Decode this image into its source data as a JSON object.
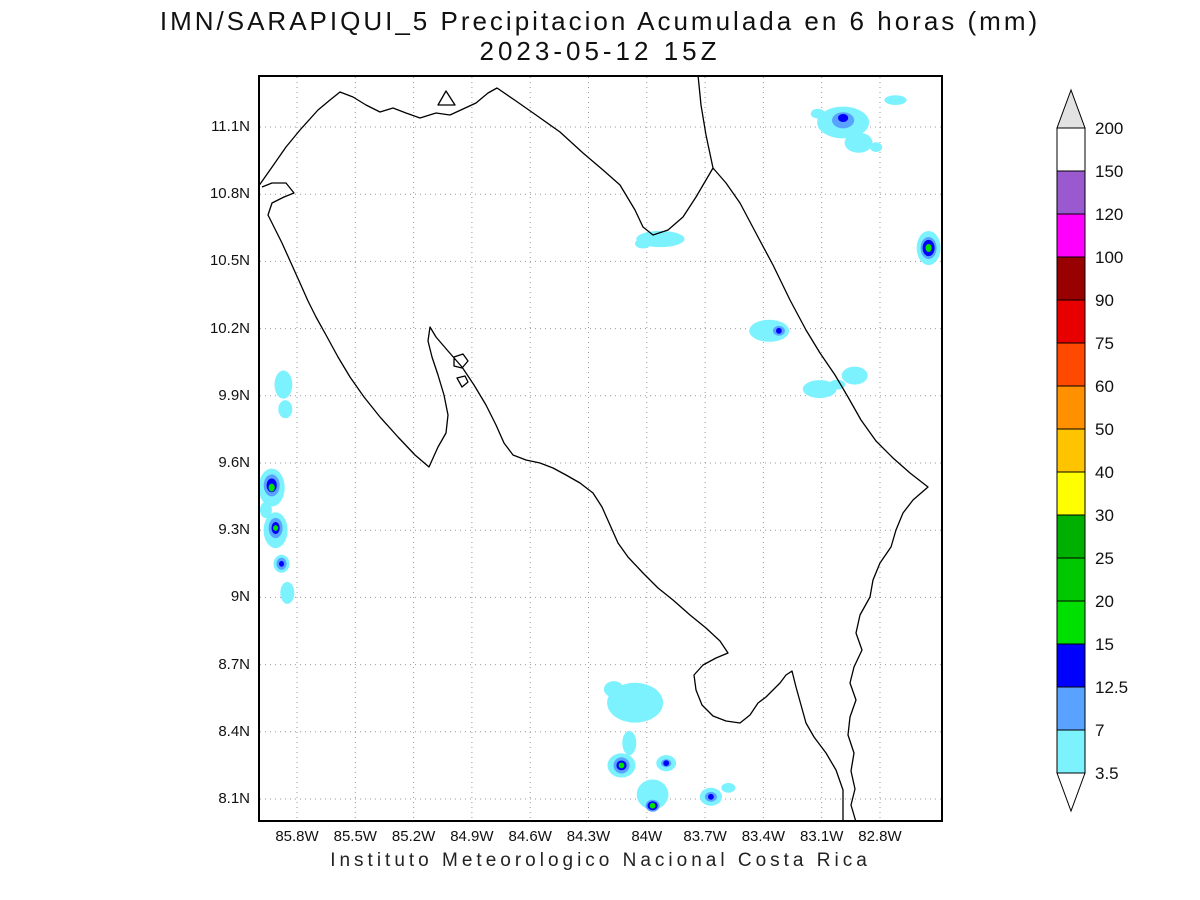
{
  "title": "IMN/SARAPIQUI_5 Precipitacion Acumulada en 6 horas (mm)",
  "subtitle": "2023-05-12 15Z",
  "footer": "Instituto Meteorologico Nacional Costa Rica",
  "axes": {
    "lat_ticks": [
      {
        "value": 11.1,
        "label": "11.1N"
      },
      {
        "value": 10.8,
        "label": "10.8N"
      },
      {
        "value": 10.5,
        "label": "10.5N"
      },
      {
        "value": 10.2,
        "label": "10.2N"
      },
      {
        "value": 9.9,
        "label": "9.9N"
      },
      {
        "value": 9.6,
        "label": "9.6N"
      },
      {
        "value": 9.3,
        "label": "9.3N"
      },
      {
        "value": 9.0,
        "label": "9N"
      },
      {
        "value": 8.7,
        "label": "8.7N"
      },
      {
        "value": 8.4,
        "label": "8.4N"
      },
      {
        "value": 8.1,
        "label": "8.1N"
      }
    ],
    "lon_ticks": [
      {
        "value": 85.8,
        "label": "85.8W"
      },
      {
        "value": 85.5,
        "label": "85.5W"
      },
      {
        "value": 85.2,
        "label": "85.2W"
      },
      {
        "value": 84.9,
        "label": "84.9W"
      },
      {
        "value": 84.6,
        "label": "84.6W"
      },
      {
        "value": 84.3,
        "label": "84.3W"
      },
      {
        "value": 84.0,
        "label": "84W"
      },
      {
        "value": 83.7,
        "label": "83.7W"
      },
      {
        "value": 83.4,
        "label": "83.4W"
      },
      {
        "value": 83.1,
        "label": "83.1W"
      },
      {
        "value": 82.8,
        "label": "82.8W"
      }
    ]
  },
  "map": {
    "region": "Costa Rica",
    "grid_color": "#999999",
    "coast_color": "#000000",
    "background": "#ffffff"
  },
  "colorbar": {
    "units": "mm",
    "levels": [
      "200",
      "150",
      "120",
      "100",
      "90",
      "75",
      "60",
      "50",
      "40",
      "30",
      "25",
      "20",
      "15",
      "12.5",
      "7",
      "3.5"
    ],
    "cell_colors": [
      "#ffffff",
      "#9b59d0",
      "#ff00ff",
      "#990000",
      "#e80000",
      "#ff4800",
      "#ff9000",
      "#ffc400",
      "#ffff00",
      "#00b000",
      "#00c800",
      "#00e000",
      "#0000ff",
      "#5aa2ff",
      "#7df2ff"
    ],
    "top_arrow_color": "#e2e2e2",
    "bottom_arrow_color": "#ffffff"
  },
  "chart_data": {
    "type": "heatmap",
    "variable": "Precipitacion Acumulada en 6 horas",
    "units": "mm",
    "model": "IMN/SARAPIQUI_5",
    "valid_time": "2023-05-12 15Z",
    "lon_range_w": [
      86.0,
      82.48
    ],
    "lat_range_n": [
      8.0,
      11.33
    ],
    "levels_mm": [
      3.5,
      7,
      12.5,
      15,
      20,
      25,
      30,
      40,
      50,
      60,
      75,
      90,
      100,
      120,
      150,
      200
    ],
    "palette": {
      "3.5": "#7df2ff",
      "7": "#5aa2ff",
      "12.5": "#0000ff",
      "15": "#00e000"
    },
    "precip_cells": [
      [
        82.99,
        11.12,
        0.134,
        0.071,
        "3.5"
      ],
      [
        82.91,
        11.03,
        0.072,
        0.045,
        "3.5"
      ],
      [
        82.99,
        11.13,
        0.057,
        0.036,
        "7"
      ],
      [
        82.99,
        11.14,
        0.026,
        0.018,
        "12.5"
      ],
      [
        82.72,
        11.22,
        0.057,
        0.022,
        "3.5"
      ],
      [
        82.82,
        11.01,
        0.031,
        0.022,
        "3.5"
      ],
      [
        83.12,
        11.16,
        0.036,
        0.022,
        "3.5"
      ],
      [
        82.55,
        10.56,
        0.062,
        0.076,
        "3.5"
      ],
      [
        82.55,
        10.56,
        0.041,
        0.049,
        "7"
      ],
      [
        82.55,
        10.56,
        0.031,
        0.036,
        "12.5"
      ],
      [
        82.55,
        10.56,
        0.016,
        0.018,
        "15"
      ],
      [
        83.93,
        10.6,
        0.124,
        0.036,
        "3.5"
      ],
      [
        84.02,
        10.58,
        0.041,
        0.022,
        "3.5"
      ],
      [
        83.37,
        10.19,
        0.103,
        0.049,
        "3.5"
      ],
      [
        83.32,
        10.19,
        0.031,
        0.022,
        "7"
      ],
      [
        83.32,
        10.19,
        0.015,
        0.013,
        "12.5"
      ],
      [
        83.11,
        9.93,
        0.087,
        0.04,
        "3.5"
      ],
      [
        82.93,
        9.99,
        0.067,
        0.04,
        "3.5"
      ],
      [
        83.02,
        9.95,
        0.041,
        0.022,
        "3.5"
      ],
      [
        85.87,
        9.95,
        0.046,
        0.063,
        "3.5"
      ],
      [
        85.86,
        9.84,
        0.036,
        0.04,
        "3.5"
      ],
      [
        85.93,
        9.49,
        0.067,
        0.085,
        "3.5"
      ],
      [
        85.93,
        9.5,
        0.041,
        0.049,
        "7"
      ],
      [
        85.93,
        9.5,
        0.026,
        0.031,
        "12.5"
      ],
      [
        85.93,
        9.49,
        0.016,
        0.018,
        "15"
      ],
      [
        85.96,
        9.39,
        0.031,
        0.036,
        "3.5"
      ],
      [
        85.91,
        9.3,
        0.062,
        0.08,
        "3.5"
      ],
      [
        85.91,
        9.31,
        0.036,
        0.045,
        "7"
      ],
      [
        85.91,
        9.31,
        0.021,
        0.027,
        "12.5"
      ],
      [
        85.91,
        9.31,
        0.013,
        0.013,
        "15"
      ],
      [
        85.88,
        9.15,
        0.041,
        0.04,
        "3.5"
      ],
      [
        85.88,
        9.15,
        0.026,
        0.027,
        "7"
      ],
      [
        85.88,
        9.15,
        0.013,
        0.013,
        "12.5"
      ],
      [
        85.85,
        9.02,
        0.036,
        0.049,
        "3.5"
      ],
      [
        84.06,
        8.53,
        0.144,
        0.089,
        "3.5"
      ],
      [
        84.17,
        8.59,
        0.051,
        0.036,
        "3.5"
      ],
      [
        84.09,
        8.35,
        0.036,
        0.054,
        "3.5"
      ],
      [
        84.13,
        8.25,
        0.072,
        0.054,
        "3.5"
      ],
      [
        84.13,
        8.25,
        0.041,
        0.036,
        "7"
      ],
      [
        84.13,
        8.25,
        0.026,
        0.022,
        "12.5"
      ],
      [
        84.13,
        8.25,
        0.015,
        0.013,
        "15"
      ],
      [
        83.9,
        8.26,
        0.051,
        0.036,
        "3.5"
      ],
      [
        83.9,
        8.26,
        0.026,
        0.018,
        "7"
      ],
      [
        83.9,
        8.26,
        0.015,
        0.013,
        "12.5"
      ],
      [
        83.97,
        8.12,
        0.082,
        0.067,
        "3.5"
      ],
      [
        83.97,
        8.07,
        0.036,
        0.027,
        "7"
      ],
      [
        83.97,
        8.07,
        0.026,
        0.02,
        "12.5"
      ],
      [
        83.97,
        8.07,
        0.015,
        0.013,
        "15"
      ],
      [
        83.67,
        8.11,
        0.057,
        0.04,
        "3.5"
      ],
      [
        83.67,
        8.11,
        0.031,
        0.022,
        "7"
      ],
      [
        83.67,
        8.11,
        0.015,
        0.013,
        "12.5"
      ],
      [
        83.58,
        8.15,
        0.036,
        0.022,
        "3.5"
      ]
    ]
  }
}
